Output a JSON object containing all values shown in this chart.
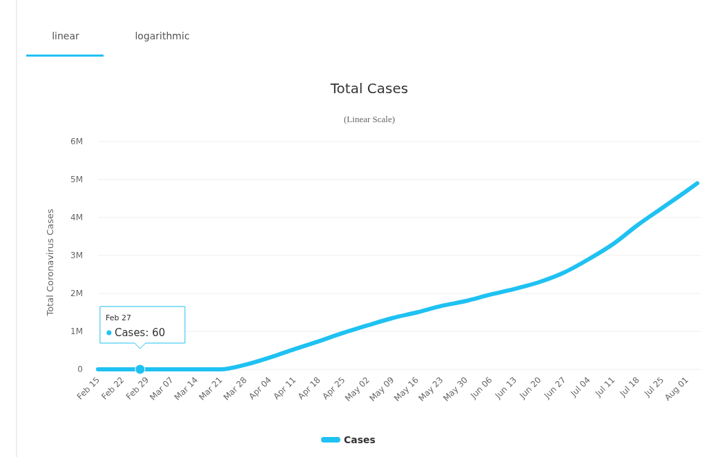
{
  "chart_data": {
    "type": "line",
    "title": "Total Cases",
    "subtitle": "(Linear Scale)",
    "ylabel": "Total Coronavirus Cases",
    "x": [
      "--02-15",
      "--02-22",
      "--02-27",
      "--03-07",
      "--03-14",
      "--03-21",
      "--03-28",
      "--04-04",
      "--04-11",
      "--04-18",
      "--04-25",
      "--05-02",
      "--05-09",
      "--05-16",
      "--05-23",
      "--05-30",
      "--06-06",
      "--06-13",
      "--06-20",
      "--06-27",
      "--07-04",
      "--07-11",
      "--07-18",
      "--07-25",
      "--08-01",
      "--08-04"
    ],
    "series": [
      {
        "name": "Cases",
        "color": "#1fc1f2",
        "values": [
          0,
          0,
          60,
          0,
          0,
          0,
          120000,
          310000,
          530000,
          740000,
          960000,
          1160000,
          1350000,
          1500000,
          1670000,
          1800000,
          1970000,
          2120000,
          2300000,
          2550000,
          2900000,
          3300000,
          3800000,
          4250000,
          4700000,
          4900000
        ]
      }
    ],
    "xlim": [
      "--02-15",
      "--08-05"
    ],
    "xticks": [
      {
        "value": "--02-15",
        "label": "Feb 15"
      },
      {
        "value": "--02-22",
        "label": "Feb 22"
      },
      {
        "value": "--02-29",
        "label": "Feb 29"
      },
      {
        "value": "--03-07",
        "label": "Mar 07"
      },
      {
        "value": "--03-14",
        "label": "Mar 14"
      },
      {
        "value": "--03-21",
        "label": "Mar 21"
      },
      {
        "value": "--03-28",
        "label": "Mar 28"
      },
      {
        "value": "--04-04",
        "label": "Apr 04"
      },
      {
        "value": "--04-11",
        "label": "Apr 11"
      },
      {
        "value": "--04-18",
        "label": "Apr 18"
      },
      {
        "value": "--04-25",
        "label": "Apr 25"
      },
      {
        "value": "--05-02",
        "label": "May 02"
      },
      {
        "value": "--05-09",
        "label": "May 09"
      },
      {
        "value": "--05-16",
        "label": "May 16"
      },
      {
        "value": "--05-23",
        "label": "May 23"
      },
      {
        "value": "--05-30",
        "label": "May 30"
      },
      {
        "value": "--06-06",
        "label": "Jun 06"
      },
      {
        "value": "--06-13",
        "label": "Jun 13"
      },
      {
        "value": "--06-20",
        "label": "Jun 20"
      },
      {
        "value": "--06-27",
        "label": "Jun 27"
      },
      {
        "value": "--07-04",
        "label": "Jul 04"
      },
      {
        "value": "--07-11",
        "label": "Jul 11"
      },
      {
        "value": "--07-18",
        "label": "Jul 18"
      },
      {
        "value": "--07-25",
        "label": "Jul 25"
      },
      {
        "value": "--08-01",
        "label": "Aug 01"
      }
    ],
    "ylim": [
      0,
      6000000
    ],
    "yticks": [
      {
        "value": 0,
        "label": "0"
      },
      {
        "value": 1000000,
        "label": "1M"
      },
      {
        "value": 2000000,
        "label": "2M"
      },
      {
        "value": 3000000,
        "label": "3M"
      },
      {
        "value": 4000000,
        "label": "4M"
      },
      {
        "value": 5000000,
        "label": "5M"
      },
      {
        "value": 6000000,
        "label": "6M"
      }
    ],
    "grid": "y",
    "legend": "bottom",
    "marker": "none",
    "line_style": "solid",
    "annotations": [
      "linear",
      "logarithmic",
      {
        "text": "Feb 27\nCases: 60",
        "x": "--02-27",
        "y": 60
      }
    ]
  }
}
